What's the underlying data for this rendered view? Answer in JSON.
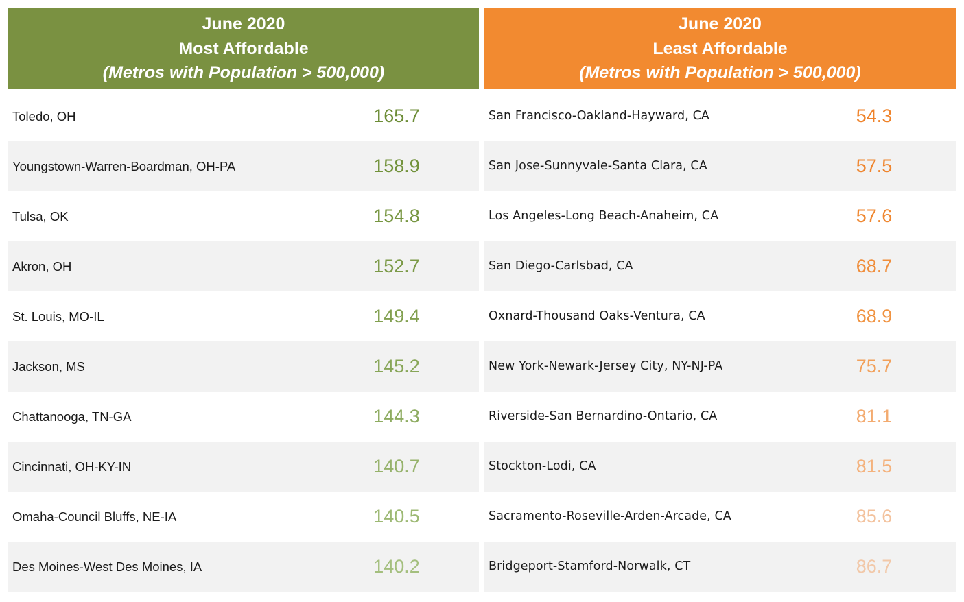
{
  "chart_data": [
    {
      "type": "table",
      "header": {
        "line1": "June 2020",
        "line2": "Most Affordable",
        "line3": "(Metros with Population > 500,000)"
      },
      "color": "#7a9141",
      "rows": [
        {
          "metro": "Toledo, OH",
          "value": "165.7",
          "color": "#6d8d37"
        },
        {
          "metro": "Youngstown-Warren-Boardman, OH-PA",
          "value": "158.9",
          "color": "#72923b"
        },
        {
          "metro": "Tulsa, OK",
          "value": "154.8",
          "color": "#779641"
        },
        {
          "metro": "Akron, OH",
          "value": "152.7",
          "color": "#7c9a48"
        },
        {
          "metro": "St. Louis, MO-IL",
          "value": "149.4",
          "color": "#82a050"
        },
        {
          "metro": "Jackson, MS",
          "value": "145.2",
          "color": "#88a658"
        },
        {
          "metro": "Chattanooga, TN-GA",
          "value": "144.3",
          "color": "#8eac61"
        },
        {
          "metro": "Cincinnati, OH-KY-IN",
          "value": "140.7",
          "color": "#96b26b"
        },
        {
          "metro": "Omaha-Council Bluffs, NE-IA",
          "value": "140.5",
          "color": "#9db974"
        },
        {
          "metro": "Des Moines-West Des Moines, IA",
          "value": "140.2",
          "color": "#a4bf7e"
        }
      ]
    },
    {
      "type": "table",
      "header": {
        "line1": "June 2020",
        "line2": "Least Affordable",
        "line3": "(Metros with Population > 500,000)"
      },
      "color": "#f28a30",
      "rows": [
        {
          "metro": "San Francisco-Oakland-Hayward, CA",
          "value": "54.3",
          "color": "#ef8229"
        },
        {
          "metro": "San Jose-Sunnyvale-Santa Clara, CA",
          "value": "57.5",
          "color": "#ef852e"
        },
        {
          "metro": "Los Angeles-Long Beach-Anaheim, CA",
          "value": "57.6",
          "color": "#ef8730"
        },
        {
          "metro": "San Diego-Carlsbad, CA",
          "value": "68.7",
          "color": "#f08d3a"
        },
        {
          "metro": "Oxnard-Thousand Oaks-Ventura, CA",
          "value": "68.9",
          "color": "#f09341"
        },
        {
          "metro": "New York-Newark-Jersey City, NY-NJ-PA",
          "value": "75.7",
          "color": "#f2a05a"
        },
        {
          "metro": "Riverside-San Bernardino-Ontario, CA",
          "value": "81.1",
          "color": "#f3ab70"
        },
        {
          "metro": "Stockton-Lodi, CA",
          "value": "81.5",
          "color": "#f4b27d"
        },
        {
          "metro": "Sacramento-Roseville-Arden-Arcade, CA",
          "value": "85.6",
          "color": "#f3c29d"
        },
        {
          "metro": "Bridgeport-Stamford-Norwalk, CT",
          "value": "86.7",
          "color": "#f2c8a8"
        }
      ]
    }
  ]
}
